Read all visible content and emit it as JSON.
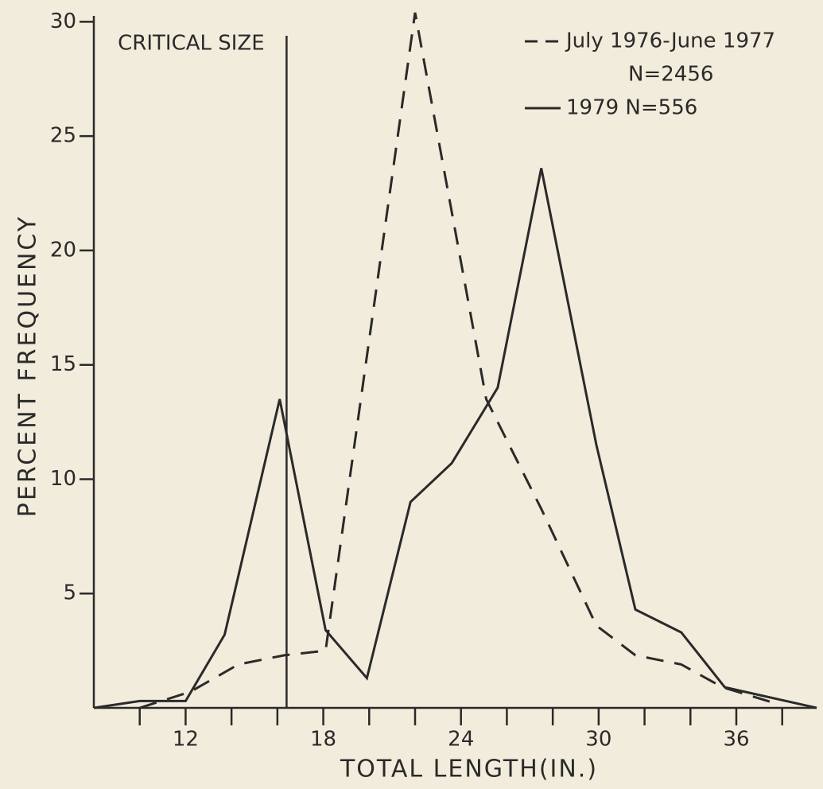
{
  "chart_data": {
    "type": "line",
    "x_label": "TOTAL LENGTH(IN.)",
    "y_label": "PERCENT FREQUENCY",
    "xlim": [
      8,
      39.5
    ],
    "ylim": [
      0,
      30.5
    ],
    "xticks": [
      12,
      18,
      24,
      30,
      36
    ],
    "xminorticks": [
      10,
      14,
      16,
      20,
      22,
      26,
      28,
      32,
      34,
      38
    ],
    "yticks": [
      5,
      10,
      15,
      20,
      25,
      30
    ],
    "annotation": {
      "text": "CRITICAL SIZE",
      "x": 16.4
    },
    "series": [
      {
        "name": "July 1976-June 1977",
        "legend_note": "N=2456",
        "color": "#2a2a2a",
        "dash": true,
        "x": [
          10,
          12.2,
          14.3,
          16.3,
          18.1,
          22,
          25.1,
          27.5,
          29.9,
          31.6,
          33.6,
          35.4,
          37.7
        ],
        "values": [
          0,
          0.7,
          1.9,
          2.3,
          2.5,
          30.4,
          13.5,
          8.7,
          3.6,
          2.3,
          1.9,
          0.9,
          0.2
        ]
      },
      {
        "name": "1979 N=556",
        "color": "#2a2a2a",
        "dash": false,
        "x": [
          8,
          10,
          12,
          13.7,
          16.1,
          18.1,
          19.9,
          21.8,
          23.6,
          25.6,
          27.5,
          29.9,
          31.6,
          33.6,
          35.5,
          39.5
        ],
        "values": [
          0,
          0.3,
          0.3,
          3.2,
          13.5,
          3.4,
          1.3,
          9,
          10.7,
          14,
          23.6,
          11.5,
          4.3,
          3.3,
          0.9,
          0
        ]
      }
    ]
  }
}
